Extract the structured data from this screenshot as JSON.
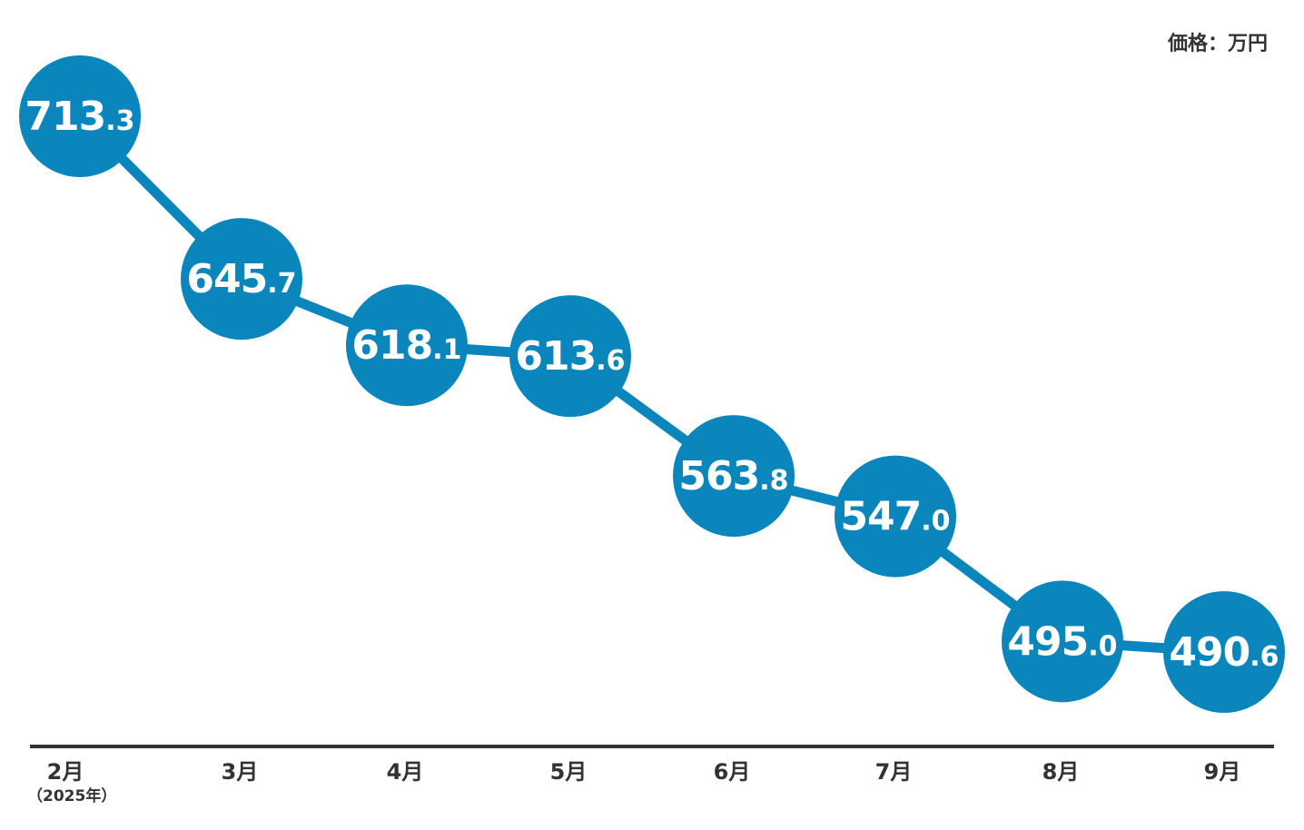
{
  "chart_data": {
    "type": "line",
    "unit_label": "価格：万円",
    "categories": [
      "2月",
      "3月",
      "4月",
      "5月",
      "6月",
      "7月",
      "8月",
      "9月"
    ],
    "category_note": "（2025年）",
    "values": [
      713.3,
      645.7,
      618.1,
      613.6,
      563.8,
      547.0,
      495.0,
      490.6
    ],
    "value_labels": [
      {
        "int": "713",
        "dec": ".3"
      },
      {
        "int": "645",
        "dec": ".7"
      },
      {
        "int": "618",
        "dec": ".1"
      },
      {
        "int": "613",
        "dec": ".6"
      },
      {
        "int": "563",
        "dec": ".8"
      },
      {
        "int": "547",
        "dec": ".0"
      },
      {
        "int": "495",
        "dec": ".0"
      },
      {
        "int": "490",
        "dec": ".6"
      }
    ],
    "grid": false,
    "legend": "none"
  },
  "colors": {
    "marker": "#0b86bd",
    "line": "#0b86bd",
    "label": "#ffffff",
    "axis": "#333333",
    "text": "#333333"
  }
}
